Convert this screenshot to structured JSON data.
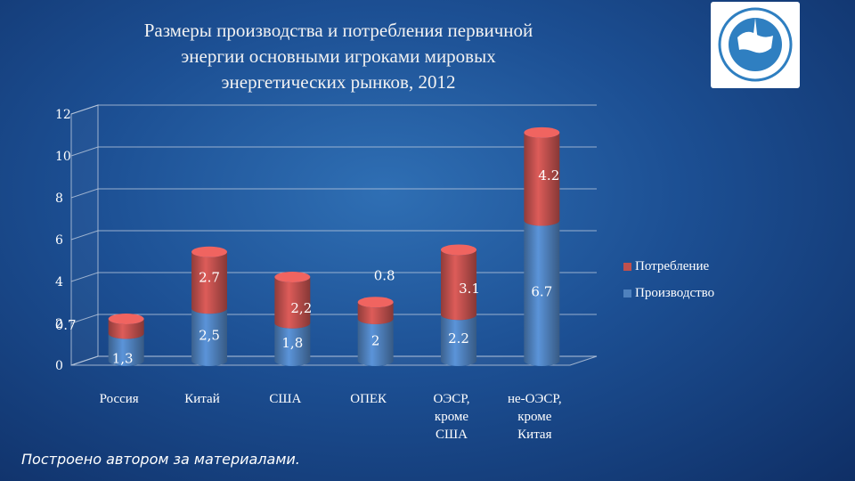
{
  "header": {
    "title_lines": [
      "Размеры производства и потребления первичной",
      "энергии основными игроками мировых",
      "энергетических рынков, 2012"
    ]
  },
  "footer": {
    "source_note": "Построено автором за материалами."
  },
  "colors": {
    "production": "#4f81bd",
    "consumption": "#c0504d"
  },
  "chart_data": {
    "type": "bar",
    "stacked": true,
    "style": "3d-cylinder",
    "categories": [
      [
        "Россия"
      ],
      [
        "Китай"
      ],
      [
        "США"
      ],
      [
        "ОПЕК"
      ],
      [
        "ОЭСР,",
        "кроме",
        "США"
      ],
      [
        "не-ОЭСР,",
        "кроме",
        "Китая"
      ]
    ],
    "series": [
      {
        "name": "Производство",
        "values": [
          1.3,
          2.5,
          1.8,
          2,
          2.2,
          6.7
        ],
        "labels": [
          "1,3",
          "2,5",
          "1,8",
          "2",
          "2.2",
          "6.7"
        ]
      },
      {
        "name": "Потребление",
        "values": [
          0.7,
          2.7,
          2.2,
          0.8,
          3.1,
          4.2
        ],
        "labels": [
          "0.7",
          "2.7",
          "2,2",
          "0.8",
          "3.1",
          "4.2"
        ]
      }
    ],
    "ylim": [
      0,
      12
    ],
    "yticks": [
      "0",
      "2",
      "4",
      "6",
      "8",
      "10",
      "12"
    ],
    "grid": true,
    "legend_position": "right"
  }
}
